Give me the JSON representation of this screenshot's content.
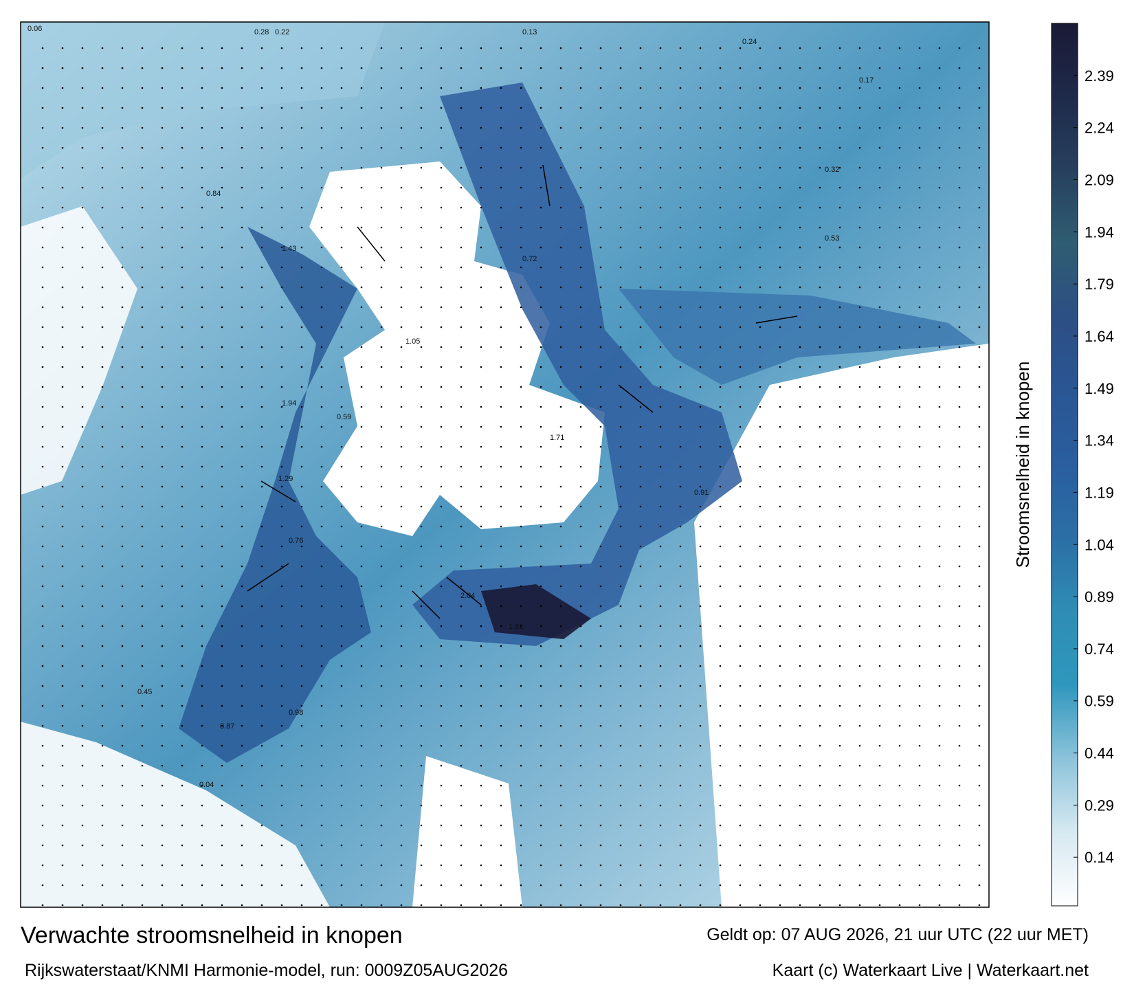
{
  "title": "Verwachte stroomsnelheid in knopen",
  "subtitle": "Rijkswaterstaat/KNMI Harmonie-model, run: 0009Z05AUG2026",
  "valid_time": "Geldt op: 07 AUG 2026, 21 uur UTC (22 uur MET)",
  "credit": "Kaart (c) Waterkaart Live | Waterkaart.net",
  "colorbar": {
    "label": "Stroomsnelheid in knopen",
    "lim": [
      0,
      2.54
    ],
    "ticks": [
      0.14,
      0.29,
      0.44,
      0.59,
      0.74,
      0.89,
      1.04,
      1.19,
      1.34,
      1.49,
      1.64,
      1.79,
      1.94,
      2.09,
      2.24,
      2.39
    ],
    "colors": [
      "#ffffff",
      "#d6e9f1",
      "#8cc3da",
      "#2f97bd",
      "#2f8db5",
      "#2b6fa6",
      "#2a5e9f",
      "#2a5694",
      "#2c4f84",
      "#2f5d72",
      "#27405e",
      "#1e2a4a",
      "#1a1a36"
    ]
  },
  "speed_labels": [
    0.06,
    0.28,
    0.22,
    0.13,
    0.84,
    1.43,
    1.94,
    0.59,
    1.29,
    0.76,
    2.04,
    1.61,
    0.98,
    0.45,
    0.72,
    1.71,
    0.91,
    0.32,
    0.04,
    0.24,
    0.53,
    1.05,
    0.87,
    0.17
  ]
}
